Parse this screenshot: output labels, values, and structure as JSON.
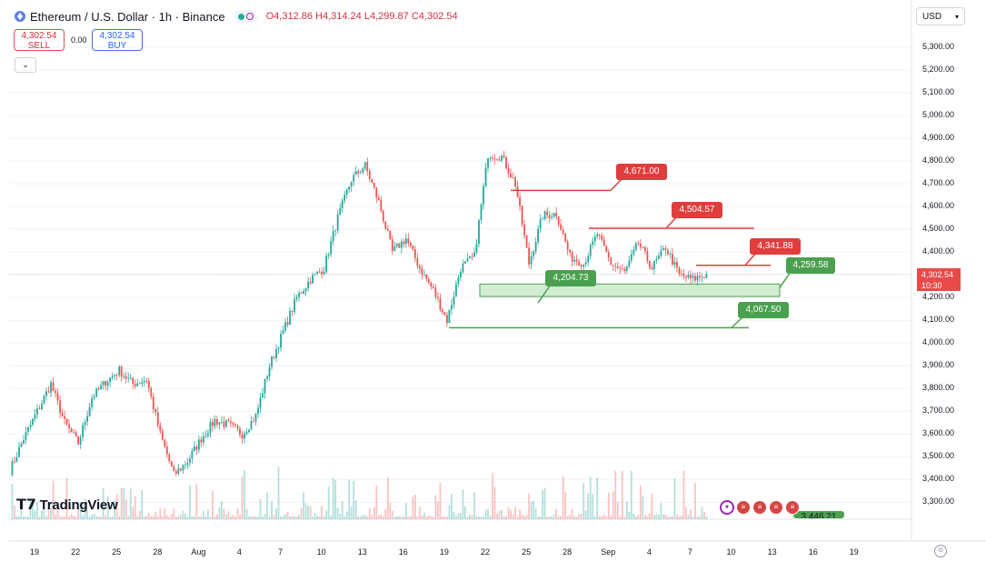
{
  "header": {
    "symbol": "Ethereum / U.S. Dollar · 1h · Binance",
    "open": "O4,312.86",
    "high": "H4,314.24",
    "low": "L4,299.87",
    "close": "C4,302.54"
  },
  "trade": {
    "sell_price": "4,302.54",
    "sell_label": "SELL",
    "spread": "0.00",
    "buy_price": "4,302.54",
    "buy_label": "BUY"
  },
  "currency": "USD",
  "price_axis": [
    "5,300.00",
    "5,200.00",
    "5,100.00",
    "5,000.00",
    "4,900.00",
    "4,800.00",
    "4,700.00",
    "4,600.00",
    "4,500.00",
    "4,400.00",
    "4,300.00",
    "4,200.00",
    "4,100.00",
    "4,000.00",
    "3,900.00",
    "3,800.00",
    "3,700.00",
    "3,600.00",
    "3,500.00",
    "3,400.00",
    "3,300.00"
  ],
  "time_axis": [
    "19",
    "22",
    "25",
    "28",
    "Aug",
    "4",
    "7",
    "10",
    "13",
    "16",
    "19",
    "22",
    "25",
    "28",
    "Sep",
    "4",
    "7",
    "10",
    "13",
    "16",
    "19"
  ],
  "last_price": {
    "price": "4,302.54",
    "countdown": "10:30"
  },
  "logo": "TradingView",
  "annotations": {
    "r1": "4,671.00",
    "r2": "4,504.57",
    "r3": "4,341.88",
    "s1": "4,259.58",
    "s2": "4,204.73",
    "s3": "4,067.50",
    "s4": "3,446.21"
  },
  "colors": {
    "up": "#26a69a",
    "down": "#ef5350",
    "resistance": "#e03d3d",
    "support": "#4ba04f"
  },
  "chart_data": {
    "type": "candlestick",
    "symbol": "Ethereum / U.S. Dollar",
    "interval": "1h",
    "ylim": [
      3250,
      5350
    ],
    "price_path": [
      [
        "19",
        3440
      ],
      [
        "20",
        3580
      ],
      [
        "21",
        3700
      ],
      [
        "22",
        3820
      ],
      [
        "23",
        3650
      ],
      [
        "24",
        3560
      ],
      [
        "25",
        3760
      ],
      [
        "26",
        3830
      ],
      [
        "27",
        3880
      ],
      [
        "28",
        3820
      ],
      [
        "29",
        3840
      ],
      [
        "30",
        3600
      ],
      [
        "31",
        3420
      ],
      [
        "Aug 1",
        3480
      ],
      [
        "2",
        3580
      ],
      [
        "3",
        3660
      ],
      [
        "4",
        3640
      ],
      [
        "5",
        3600
      ],
      [
        "6",
        3680
      ],
      [
        "7",
        3900
      ],
      [
        "8",
        4050
      ],
      [
        "9",
        4200
      ],
      [
        "10",
        4280
      ],
      [
        "11",
        4330
      ],
      [
        "12",
        4550
      ],
      [
        "13",
        4720
      ],
      [
        "14",
        4780
      ],
      [
        "15",
        4620
      ],
      [
        "16",
        4400
      ],
      [
        "17",
        4460
      ],
      [
        "18",
        4330
      ],
      [
        "19",
        4230
      ],
      [
        "20",
        4100
      ],
      [
        "21",
        4330
      ],
      [
        "22",
        4380
      ],
      [
        "23",
        4830
      ],
      [
        "24",
        4820
      ],
      [
        "25",
        4700
      ],
      [
        "26",
        4350
      ],
      [
        "27",
        4560
      ],
      [
        "28",
        4570
      ],
      [
        "29",
        4380
      ],
      [
        "30",
        4350
      ],
      [
        "31",
        4480
      ],
      [
        "Sep 1",
        4350
      ],
      [
        "2",
        4310
      ],
      [
        "3",
        4440
      ],
      [
        "4",
        4330
      ],
      [
        "5",
        4420
      ],
      [
        "6",
        4300
      ],
      [
        "7",
        4280
      ],
      [
        "8",
        4302.54
      ]
    ],
    "levels": {
      "resistance": [
        4671.0,
        4504.57,
        4341.88
      ],
      "support": [
        4259.58,
        4204.73,
        4067.5,
        3446.21
      ],
      "support_zone": [
        4204.73,
        4259.58
      ]
    }
  }
}
